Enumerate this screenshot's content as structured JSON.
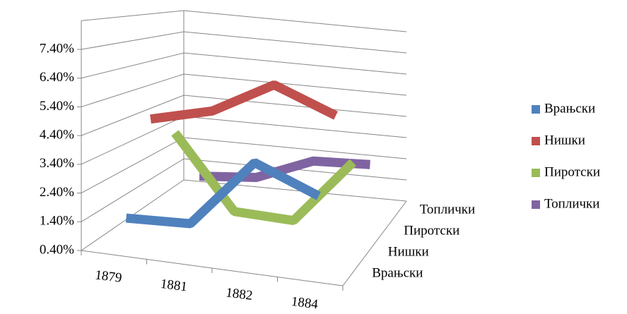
{
  "chart_data": {
    "type": "line3d",
    "categories": [
      "1879",
      "1881",
      "1882",
      "1884"
    ],
    "depth_categories": [
      "Врањски",
      "Нишки",
      "Пиротски",
      "Топлички"
    ],
    "series": [
      {
        "name": "Врањски",
        "color": "#4f81bd",
        "values": [
          1.4,
          1.5,
          4.0,
          3.1
        ]
      },
      {
        "name": "Нишки",
        "color": "#c0504d",
        "values": [
          4.6,
          5.2,
          6.5,
          5.6
        ]
      },
      {
        "name": "Пиротски",
        "color": "#9bbb59",
        "values": [
          3.6,
          0.6,
          0.5,
          3.2
        ]
      },
      {
        "name": "Топлички",
        "color": "#8064a2",
        "values": [
          1.1,
          1.3,
          2.3,
          2.4
        ]
      }
    ],
    "ylim": [
      0.4,
      8.4
    ],
    "yticks": [
      {
        "value": 0.4,
        "label": "0.40%"
      },
      {
        "value": 1.4,
        "label": "1.40%"
      },
      {
        "value": 2.4,
        "label": "2.40%"
      },
      {
        "value": 3.4,
        "label": "3.40%"
      },
      {
        "value": 4.4,
        "label": "4.40%"
      },
      {
        "value": 5.4,
        "label": "5.40%"
      },
      {
        "value": 6.4,
        "label": "6.40%"
      },
      {
        "value": 7.4,
        "label": "7.40%"
      }
    ],
    "grid": true,
    "legend": "right"
  }
}
